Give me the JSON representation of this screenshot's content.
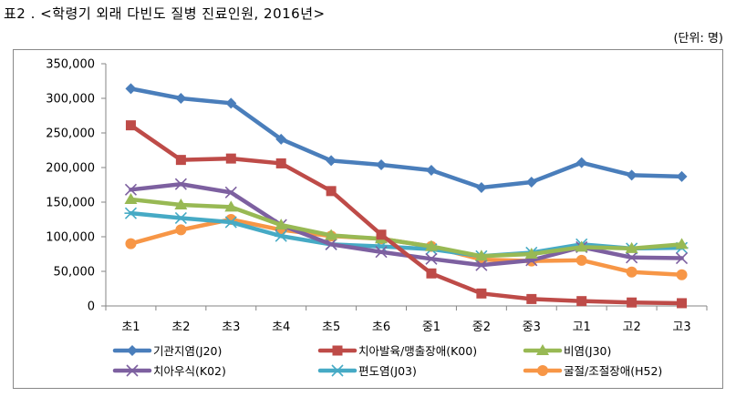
{
  "header": {
    "title": "표2 . <학령기 외래 다빈도 질병 진료인원, 2016년>",
    "unit": "(단위: 명)"
  },
  "chart_data": {
    "type": "line",
    "title": "학령기 외래 다빈도 질병 진료인원, 2016년",
    "xlabel": "",
    "ylabel": "명",
    "categories": [
      "초1",
      "초2",
      "초3",
      "초4",
      "초5",
      "초6",
      "중1",
      "중2",
      "중3",
      "고1",
      "고2",
      "고3"
    ],
    "ylim": [
      0,
      350000
    ],
    "yticks": [
      0,
      50000,
      100000,
      150000,
      200000,
      250000,
      300000,
      350000
    ],
    "ytick_labels": [
      "0",
      "50,000",
      "100,000",
      "150,000",
      "200,000",
      "250,000",
      "300,000",
      "350,000"
    ],
    "grid": false,
    "legend_position": "bottom",
    "series": [
      {
        "name": "기관지염(J20)",
        "marker": "diamond",
        "color": "#4A7EBB",
        "values": [
          314000,
          300000,
          293000,
          241000,
          210000,
          204000,
          196000,
          171000,
          179000,
          207000,
          189000,
          187000
        ]
      },
      {
        "name": "치아발육/맹출장애(K00)",
        "marker": "square",
        "color": "#BE4B48",
        "values": [
          261000,
          211000,
          213000,
          206000,
          166000,
          103000,
          47000,
          18000,
          10000,
          7000,
          5000,
          4000
        ]
      },
      {
        "name": "비염(J30)",
        "marker": "triangle",
        "color": "#98B954",
        "values": [
          154000,
          146000,
          143000,
          117000,
          102000,
          97000,
          86000,
          72000,
          75000,
          85000,
          83000,
          89000
        ]
      },
      {
        "name": "치아우식(K02)",
        "marker": "x",
        "color": "#7D60A0",
        "values": [
          168000,
          176000,
          164000,
          117000,
          89000,
          78000,
          68000,
          59000,
          66000,
          85000,
          70000,
          69000
        ]
      },
      {
        "name": "편도염(J03)",
        "marker": "star",
        "color": "#46AAC5",
        "values": [
          134000,
          127000,
          121000,
          101000,
          89000,
          86000,
          82000,
          72000,
          77000,
          89000,
          83000,
          84000
        ]
      },
      {
        "name": "굴절/조절장애(H52)",
        "marker": "circle",
        "color": "#F79646",
        "values": [
          90000,
          110000,
          125000,
          110000,
          101000,
          97000,
          86000,
          67000,
          65000,
          66000,
          49000,
          45000
        ]
      }
    ]
  }
}
